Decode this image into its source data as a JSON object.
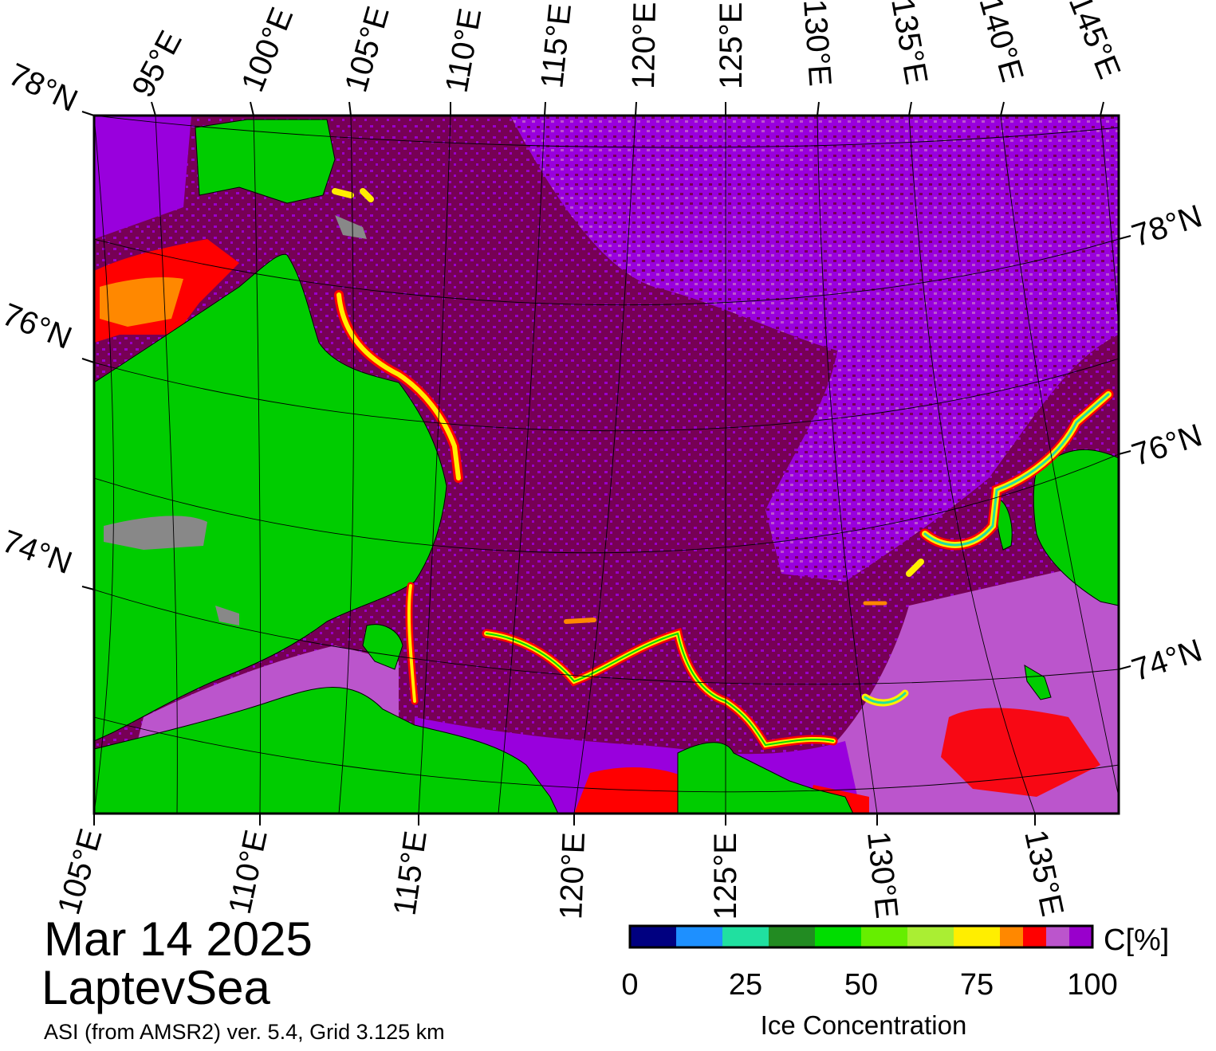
{
  "title": {
    "date": "Mar 14 2025",
    "region": "LaptevSea",
    "source": "ASI (from AMSR2) ver. 5.4,  Grid 3.125 km"
  },
  "map": {
    "top_labels": [
      "95°E",
      "100°E",
      "105°E",
      "110°E",
      "115°E",
      "120°E",
      "125°E",
      "130°E",
      "135°E",
      "140°E",
      "145°E"
    ],
    "left_labels": [
      "78°N",
      "76°N",
      "74°N"
    ],
    "right_labels": [
      "78°N",
      "76°N",
      "74°N"
    ],
    "bottom_labels": [
      "105°E",
      "110°E",
      "115°E",
      "120°E",
      "125°E",
      "130°E",
      "135°E"
    ],
    "colors": {
      "land": "#00cc00",
      "land_ice": "#888888",
      "open_ice_high": "#770055",
      "ice_95": "#9900dd",
      "ice_90": "#bb55cc"
    }
  },
  "colorbar": {
    "title": "Ice Concentration",
    "unit": "C[%]",
    "ticks": [
      "0",
      "25",
      "50",
      "75",
      "100"
    ],
    "colors": [
      "#000080",
      "#1e90ff",
      "#20e0a0",
      "#228b22",
      "#00dd00",
      "#66ee00",
      "#aaee33",
      "#ffee00",
      "#ff8800",
      "#ff0000",
      "#bb55cc",
      "#9900cc"
    ]
  }
}
